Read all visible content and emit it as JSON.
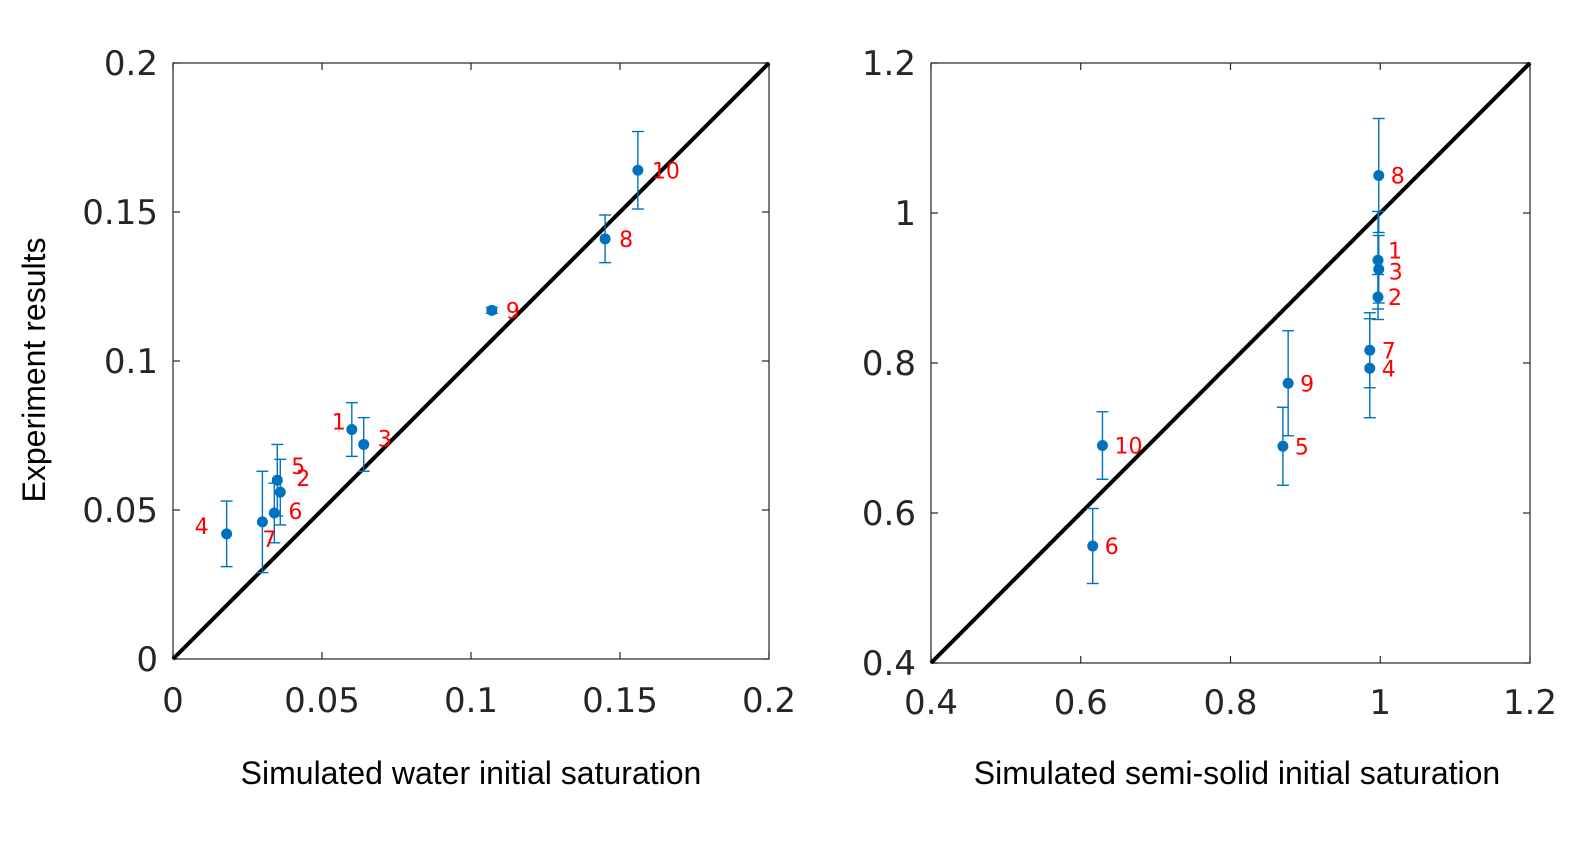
{
  "colors": {
    "marker": "#0072bd",
    "label": "#ff0000",
    "identity_line": "#000000",
    "axes": "#262626"
  },
  "chart_data": [
    {
      "type": "scatter",
      "title": "",
      "xlabel": "Simulated water initial saturation",
      "ylabel": "Experiment results",
      "xlim": [
        0,
        0.2
      ],
      "ylim": [
        0,
        0.2
      ],
      "xticks": [
        0,
        0.05,
        0.1,
        0.15,
        0.2
      ],
      "yticks": [
        0,
        0.05,
        0.1,
        0.15,
        0.2
      ],
      "xtick_labels": [
        "0",
        "0.05",
        "0.1",
        "0.15",
        "0.2"
      ],
      "ytick_labels": [
        "0",
        "0.05",
        "0.1",
        "0.15",
        "0.2"
      ],
      "identity_line": true,
      "points": [
        {
          "label": "1",
          "x": 0.06,
          "y": 0.077,
          "err": 0.009
        },
        {
          "label": "2",
          "x": 0.036,
          "y": 0.056,
          "err": 0.011
        },
        {
          "label": "3",
          "x": 0.064,
          "y": 0.072,
          "err": 0.009
        },
        {
          "label": "4",
          "x": 0.018,
          "y": 0.042,
          "err": 0.011
        },
        {
          "label": "5",
          "x": 0.035,
          "y": 0.06,
          "err": 0.012
        },
        {
          "label": "6",
          "x": 0.034,
          "y": 0.049,
          "err": 0.01
        },
        {
          "label": "7",
          "x": 0.03,
          "y": 0.046,
          "err": 0.017
        },
        {
          "label": "8",
          "x": 0.145,
          "y": 0.141,
          "err": 0.008
        },
        {
          "label": "9",
          "x": 0.107,
          "y": 0.117,
          "err": 0.001
        },
        {
          "label": "10",
          "x": 0.156,
          "y": 0.164,
          "err": 0.013
        }
      ]
    },
    {
      "type": "scatter",
      "title": "",
      "xlabel": "Simulated semi-solid initial saturation",
      "ylabel": "",
      "xlim": [
        0.4,
        1.2
      ],
      "ylim": [
        0.4,
        1.2
      ],
      "xticks": [
        0.4,
        0.6,
        0.8,
        1.0,
        1.2
      ],
      "yticks": [
        0.4,
        0.6,
        0.8,
        1.0,
        1.2
      ],
      "xtick_labels": [
        "0.4",
        "0.6",
        "0.8",
        "1",
        "1.2"
      ],
      "ytick_labels": [
        "0.4",
        "0.6",
        "0.8",
        "1",
        "1.2"
      ],
      "identity_line": true,
      "points": [
        {
          "label": "1",
          "x": 0.997,
          "y": 0.937,
          "err": 0.065
        },
        {
          "label": "2",
          "x": 0.997,
          "y": 0.888,
          "err": 0.03
        },
        {
          "label": "3",
          "x": 0.998,
          "y": 0.925,
          "err": 0.045
        },
        {
          "label": "4",
          "x": 0.986,
          "y": 0.793,
          "err": 0.066
        },
        {
          "label": "5",
          "x": 0.87,
          "y": 0.689,
          "err": 0.052
        },
        {
          "label": "6",
          "x": 0.616,
          "y": 0.556,
          "err": 0.05
        },
        {
          "label": "7",
          "x": 0.986,
          "y": 0.817,
          "err": 0.05
        },
        {
          "label": "8",
          "x": 0.998,
          "y": 1.05,
          "err": 0.076
        },
        {
          "label": "9",
          "x": 0.877,
          "y": 0.773,
          "err": 0.07
        },
        {
          "label": "10",
          "x": 0.629,
          "y": 0.69,
          "err": 0.045
        }
      ]
    }
  ]
}
